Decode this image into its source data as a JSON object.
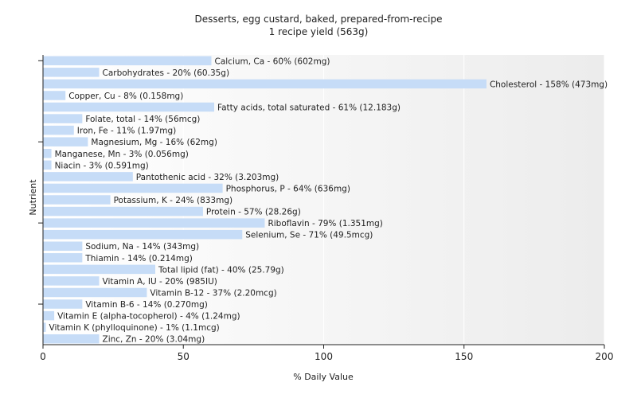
{
  "chart_data": {
    "type": "bar",
    "orientation": "horizontal",
    "title": "Desserts, egg custard, baked, prepared-from-recipe",
    "subtitle": "1 recipe yield (563g)",
    "xlabel": "% Daily Value",
    "ylabel": "Nutrient",
    "xlim": [
      0,
      200
    ],
    "xticks": [
      0,
      50,
      100,
      150,
      200
    ],
    "grid": true,
    "legend": "none",
    "bar_color": "#c6dcf7",
    "categories": [
      "Calcium, Ca",
      "Carbohydrates",
      "Cholesterol",
      "Copper, Cu",
      "Fatty acids, total saturated",
      "Folate, total",
      "Iron, Fe",
      "Magnesium, Mg",
      "Manganese, Mn",
      "Niacin",
      "Pantothenic acid",
      "Phosphorus, P",
      "Potassium, K",
      "Protein",
      "Riboflavin",
      "Selenium, Se",
      "Sodium, Na",
      "Thiamin",
      "Total lipid (fat)",
      "Vitamin A, IU",
      "Vitamin B-12",
      "Vitamin B-6",
      "Vitamin E (alpha-tocopherol)",
      "Vitamin K (phylloquinone)",
      "Zinc, Zn"
    ],
    "values": [
      60,
      20,
      158,
      8,
      61,
      14,
      11,
      16,
      3,
      3,
      32,
      64,
      24,
      57,
      79,
      71,
      14,
      14,
      40,
      20,
      37,
      14,
      4,
      1,
      20
    ],
    "labels": [
      "Calcium, Ca - 60% (602mg)",
      "Carbohydrates - 20% (60.35g)",
      "Cholesterol - 158% (473mg)",
      "Copper, Cu - 8% (0.158mg)",
      "Fatty acids, total saturated - 61% (12.183g)",
      "Folate, total - 14% (56mcg)",
      "Iron, Fe - 11% (1.97mg)",
      "Magnesium, Mg - 16% (62mg)",
      "Manganese, Mn - 3% (0.056mg)",
      "Niacin - 3% (0.591mg)",
      "Pantothenic acid - 32% (3.203mg)",
      "Phosphorus, P - 64% (636mg)",
      "Potassium, K - 24% (833mg)",
      "Protein - 57% (28.26g)",
      "Riboflavin - 79% (1.351mg)",
      "Selenium, Se - 71% (49.5mcg)",
      "Sodium, Na - 14% (343mg)",
      "Thiamin - 14% (0.214mg)",
      "Total lipid (fat) - 40% (25.79g)",
      "Vitamin A, IU - 20% (985IU)",
      "Vitamin B-12 - 37% (2.20mcg)",
      "Vitamin B-6 - 14% (0.270mg)",
      "Vitamin E (alpha-tocopherol) - 4% (1.24mg)",
      "Vitamin K (phylloquinone) - 1% (1.1mcg)",
      "Zinc, Zn - 20% (3.04mg)"
    ]
  }
}
